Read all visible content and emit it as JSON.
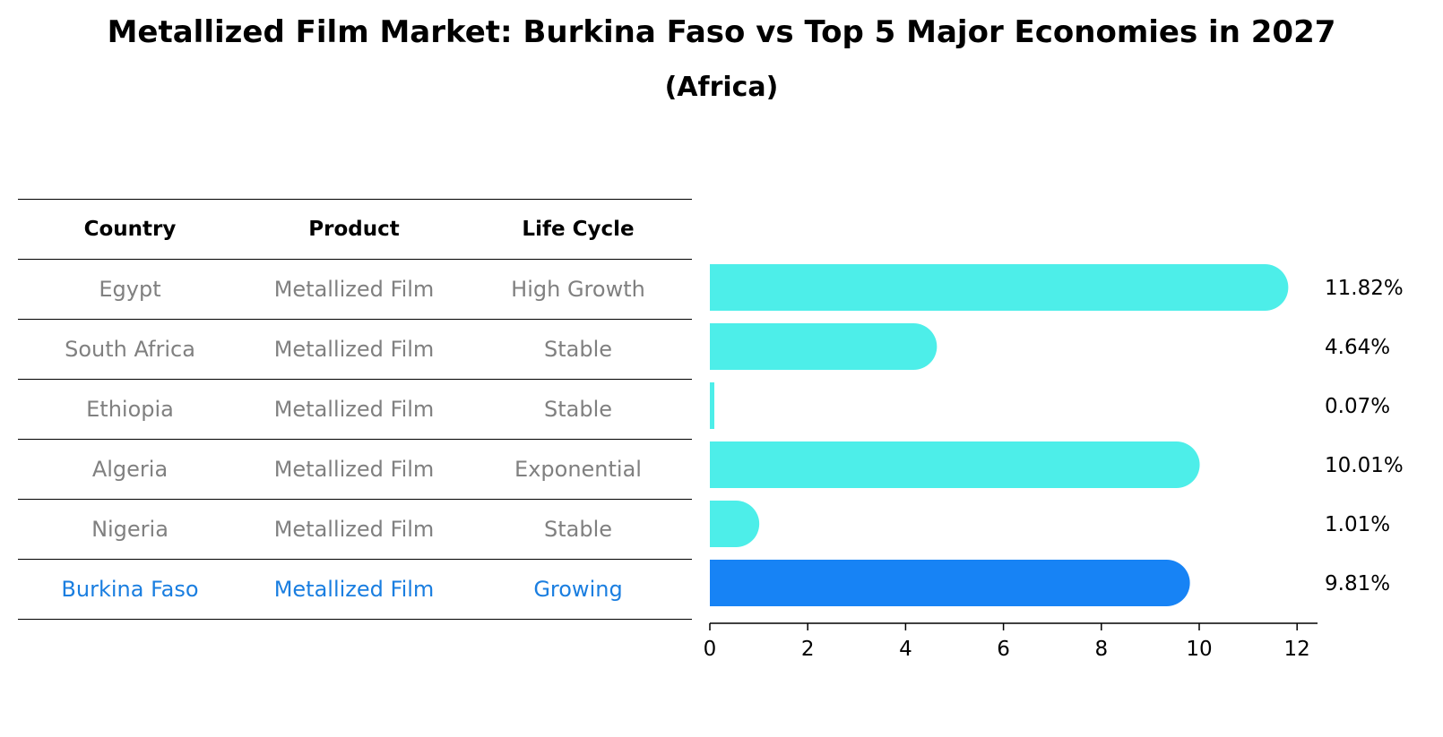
{
  "title": "Metallized Film Market: Burkina Faso vs Top 5 Major Economies in 2027",
  "subtitle": "(Africa)",
  "table": {
    "headers": [
      "Country",
      "Product",
      "Life Cycle"
    ],
    "rows": [
      [
        "Egypt",
        "Metallized Film",
        "High Growth"
      ],
      [
        "South Africa",
        "Metallized Film",
        "Stable"
      ],
      [
        "Ethiopia",
        "Metallized Film",
        "Stable"
      ],
      [
        "Algeria",
        "Metallized Film",
        "Exponential"
      ],
      [
        "Nigeria",
        "Metallized Film",
        "Stable"
      ],
      [
        "Burkina Faso",
        "Metallized Film",
        "Growing"
      ]
    ]
  },
  "chart_data": {
    "type": "bar",
    "orientation": "horizontal",
    "categories": [
      "Egypt",
      "South Africa",
      "Ethiopia",
      "Algeria",
      "Nigeria",
      "Burkina Faso"
    ],
    "values": [
      11.82,
      4.64,
      0.07,
      10.01,
      1.01,
      9.81
    ],
    "value_labels": [
      "11.82%",
      "4.64%",
      "0.07%",
      "10.01%",
      "1.01%",
      "9.81%"
    ],
    "xlim": [
      0,
      12.4
    ],
    "xticks": [
      0,
      2,
      4,
      6,
      8,
      10,
      12
    ],
    "highlight": "Burkina Faso",
    "colors": {
      "default": "#4deee9",
      "highlight": "#1783f5"
    },
    "grid": false
  }
}
